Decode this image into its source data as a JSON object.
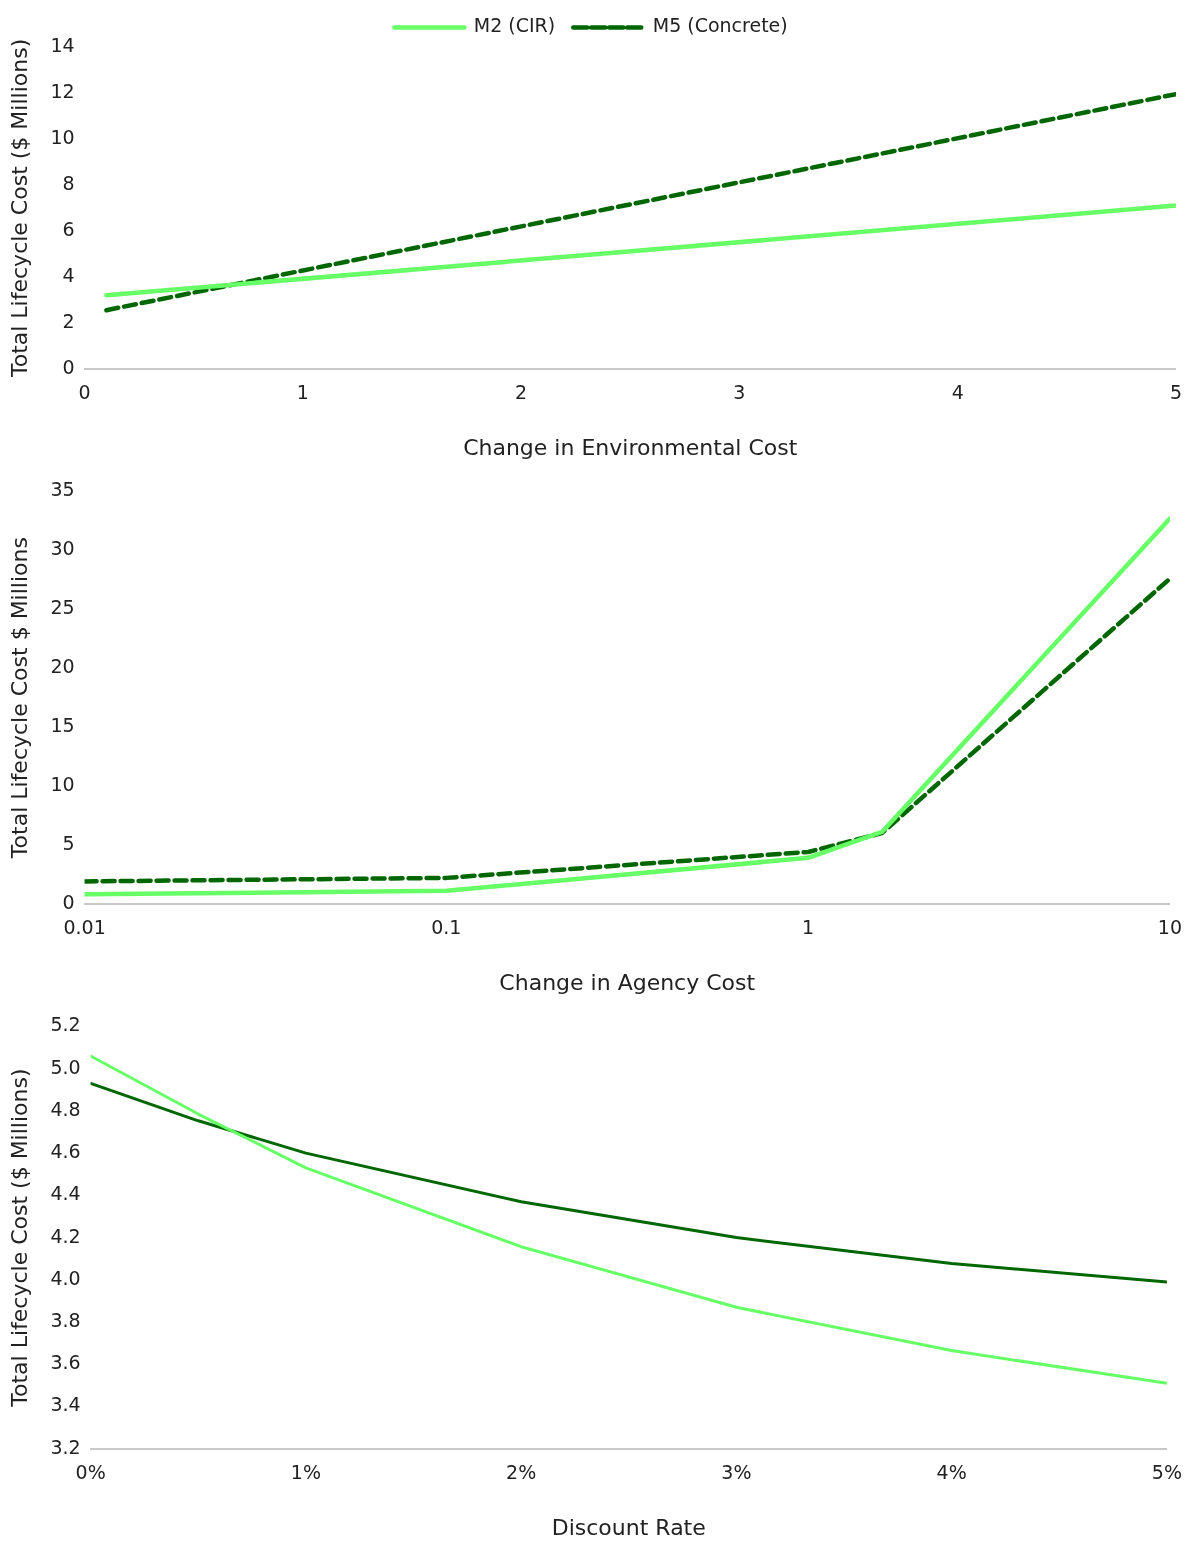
{
  "chart_data": [
    {
      "type": "line",
      "xlabel": "Change in Environmental Cost",
      "ylabel": "Total Lifecycle Cost ($ Millions)",
      "x": [
        0.1,
        5
      ],
      "xlim": [
        0,
        5
      ],
      "xticks": [
        0,
        1,
        2,
        3,
        4,
        5
      ],
      "ylim": [
        0,
        14
      ],
      "yticks": [
        0,
        2,
        4,
        6,
        8,
        10,
        12,
        14
      ],
      "grid": false,
      "legend": "top",
      "marker": "none",
      "series": [
        {
          "name": "M2 (CIR)",
          "color": "#66ff66",
          "line_style": "solid",
          "values": [
            3.2,
            7.1
          ]
        },
        {
          "name": "M5 (Concrete)",
          "color": "#006600",
          "line_style": "dashed",
          "values": [
            2.55,
            11.95
          ]
        }
      ]
    },
    {
      "type": "line",
      "xlabel": "Change in Agency Cost",
      "ylabel": "Total Lifecycle Cost $ Millions",
      "log": "x",
      "x": [
        0.01,
        0.1,
        1,
        1.6,
        10
      ],
      "xlim": [
        0.01,
        10
      ],
      "xticks": [
        0.01,
        0.1,
        1,
        10
      ],
      "ylim": [
        0,
        35
      ],
      "yticks": [
        0,
        5,
        10,
        15,
        20,
        25,
        30,
        35
      ],
      "grid": false,
      "legend": false,
      "marker": "none",
      "series": [
        {
          "color": "#66ff66",
          "line_style": "solid",
          "values": [
            0.8,
            1.1,
            3.9,
            6.1,
            32.7
          ]
        },
        {
          "color": "#006600",
          "line_style": "dashed",
          "values": [
            1.9,
            2.2,
            4.4,
            6.0,
            27.6
          ]
        }
      ]
    },
    {
      "type": "line",
      "xlabel": "Discount Rate",
      "ylabel": "Total Lifecycle Cost ($ Millions)",
      "x": [
        0,
        0.5,
        1,
        2,
        3,
        4,
        5
      ],
      "xlim": [
        0,
        5
      ],
      "xticks": [
        {
          "value": 0,
          "label": "0%"
        },
        {
          "value": 1,
          "label": "1%"
        },
        {
          "value": 2,
          "label": "2%"
        },
        {
          "value": 3,
          "label": "3%"
        },
        {
          "value": 4,
          "label": "4%"
        },
        {
          "value": 5,
          "label": "5%"
        }
      ],
      "ylim": [
        3.2,
        5.2
      ],
      "yticks": [
        {
          "value": 3.2,
          "label": "3.2"
        },
        {
          "value": 3.4,
          "label": "3.4"
        },
        {
          "value": 3.6,
          "label": "3.6"
        },
        {
          "value": 3.8,
          "label": "3.8"
        },
        {
          "value": 4,
          "label": "4.0"
        },
        {
          "value": 4.2,
          "label": "4.2"
        },
        {
          "value": 4.4,
          "label": "4.4"
        },
        {
          "value": 4.6,
          "label": "4.6"
        },
        {
          "value": 4.8,
          "label": "4.8"
        },
        {
          "value": 5,
          "label": "5.0"
        },
        {
          "value": 5.2,
          "label": "5.2"
        }
      ],
      "grid": false,
      "legend": false,
      "marker": "none",
      "line_style": "solid",
      "series": [
        {
          "color": "#66ff66",
          "values": [
            5.06,
            4.785,
            4.53,
            4.157,
            3.87,
            3.665,
            3.51
          ]
        },
        {
          "color": "#006600",
          "values": [
            4.93,
            4.753,
            4.6,
            4.37,
            4.2,
            4.077,
            3.99
          ]
        }
      ]
    }
  ]
}
